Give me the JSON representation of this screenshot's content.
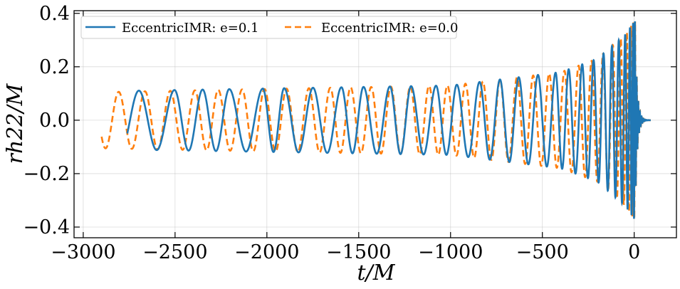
{
  "chart_data": {
    "type": "line",
    "xlabel": "t/M",
    "ylabel": "rh22/M",
    "xlim": [
      -3050,
      230
    ],
    "ylim": [
      -0.44,
      0.41
    ],
    "xticks": [
      -3000,
      -2500,
      -2000,
      -1500,
      -1000,
      -500,
      0
    ],
    "xtick_labels": [
      "−3000",
      "−2500",
      "−2000",
      "−1500",
      "−1000",
      "−500",
      "0"
    ],
    "yticks": [
      -0.4,
      -0.2,
      0.0,
      0.2,
      0.4
    ],
    "ytick_labels": [
      "−0.4",
      "−0.2",
      "0.0",
      "0.2",
      "0.4"
    ],
    "grid": true,
    "legend_position": "top-left",
    "colors": {
      "e01": "#1f77b4",
      "e00": "#ff7f0e",
      "grid": "#b0b0b0"
    },
    "series": [
      {
        "name": "EccentricIMR: e=0.1",
        "style": "solid",
        "t_start": -2760,
        "amplitude_envelope": {
          "t": [
            -2760,
            -1000,
            -400,
            -200,
            -50,
            0
          ],
          "a": [
            0.11,
            0.13,
            0.18,
            0.23,
            0.32,
            0.37
          ]
        },
        "peak_times": [
          -2697,
          -2503,
          -2350,
          -2205,
          -2022,
          -1906,
          -1749,
          -1594,
          -1474,
          -1330,
          -1215,
          -1079,
          -966,
          -842,
          -731,
          -629,
          -524,
          -428,
          -357,
          -283,
          -221,
          -167,
          -121,
          -84,
          -49,
          -23,
          -6,
          4
        ]
      },
      {
        "name": "EccentricIMR: e=0.0",
        "style": "dashed",
        "t_start": -2900,
        "amplitude_envelope": {
          "t": [
            -2900,
            -1000,
            -400,
            -200,
            -50,
            0
          ],
          "a": [
            0.105,
            0.13,
            0.18,
            0.23,
            0.32,
            0.37
          ]
        },
        "peak_times": [
          -2807,
          -2664,
          -2526,
          -2392,
          -2265,
          -2135,
          -2013,
          -1893,
          -1771,
          -1655,
          -1544,
          -1432,
          -1325,
          -1219,
          -1117,
          -1017,
          -919,
          -824,
          -731,
          -638,
          -550,
          -463,
          -380,
          -303,
          -232,
          -170,
          -116,
          -73,
          -40,
          -17,
          -4,
          5
        ]
      }
    ]
  },
  "legend": {
    "e01": "EccentricIMR: e=0.1",
    "e00": "EccentricIMR: e=0.0"
  }
}
